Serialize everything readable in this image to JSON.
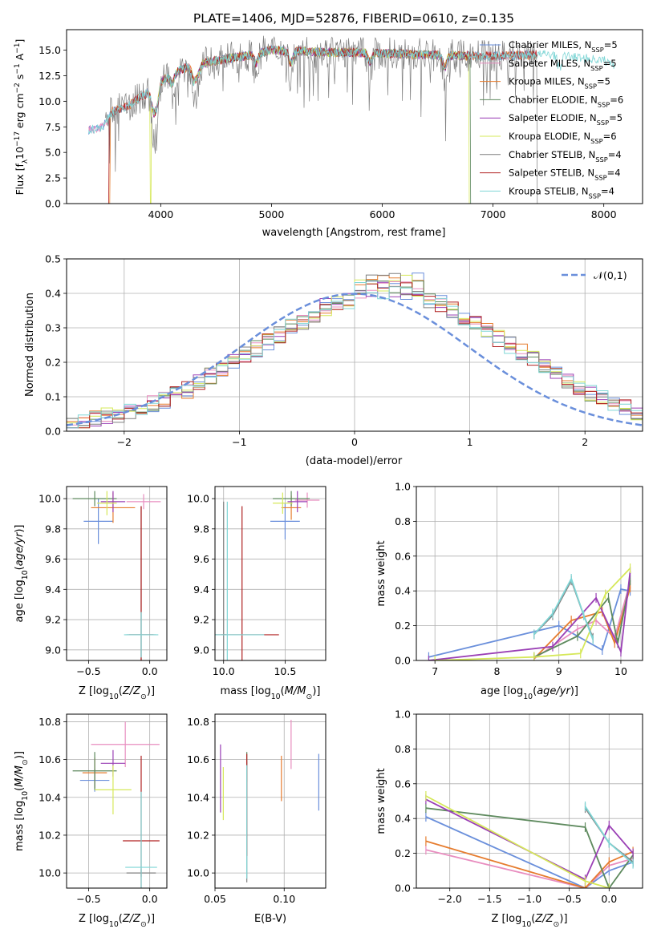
{
  "figure_title": "PLATE=1406, MJD=52876, FIBERID=0610, z=0.135",
  "chart_data": [
    {
      "id": "spectrum",
      "type": "line",
      "title": "PLATE=1406, MJD=52876, FIBERID=0610, z=0.135",
      "xlabel": "wavelength [Angstrom, rest frame]",
      "ylabel": "Flux [f_λ 10^-17 erg cm^-2 s^-1 A^-1]",
      "xlim": [
        3150,
        8350
      ],
      "ylim": [
        0,
        17
      ],
      "xticks": [
        4000,
        5000,
        6000,
        7000,
        8000
      ],
      "yticks": [
        0.0,
        2.5,
        5.0,
        7.5,
        10.0,
        12.5,
        15.0
      ],
      "grid": false,
      "legend_position": "right",
      "continuum_knots": [
        [
          3350,
          7.2
        ],
        [
          3480,
          7.5
        ],
        [
          3560,
          9.0
        ],
        [
          3700,
          9.5
        ],
        [
          3900,
          11.0
        ],
        [
          4000,
          12.0
        ],
        [
          4200,
          13.2
        ],
        [
          4500,
          14.0
        ],
        [
          4800,
          14.5
        ],
        [
          5000,
          15.0
        ],
        [
          5500,
          14.8
        ],
        [
          6000,
          14.7
        ],
        [
          6500,
          14.5
        ],
        [
          7000,
          14.4
        ],
        [
          7500,
          14.6
        ],
        [
          8000,
          14.0
        ],
        [
          8100,
          13.5
        ]
      ],
      "series": [
        {
          "name": "Chabrier MILES, N_SSP=5",
          "color": "#6a8fdb",
          "range": [
            3350,
            7400
          ],
          "dropouts": []
        },
        {
          "name": "Salpeter MILES, N_SSP=5",
          "color": "#e88dbf",
          "range": [
            3350,
            7400
          ],
          "dropouts": []
        },
        {
          "name": "Kroupa MILES, N_SSP=5",
          "color": "#e67c2e",
          "range": [
            3540,
            7400
          ],
          "dropouts": [
            3540
          ]
        },
        {
          "name": "Chabrier ELODIE, N_SSP=6",
          "color": "#5e8a5e",
          "range": [
            3900,
            6800
          ],
          "dropouts": [
            6800
          ]
        },
        {
          "name": "Salpeter ELODIE, N_SSP=5",
          "color": "#9a3fb5",
          "range": [
            3900,
            6800
          ],
          "dropouts": []
        },
        {
          "name": "Kroupa ELODIE, N_SSP=6",
          "color": "#d6e85a",
          "range": [
            3900,
            6790
          ],
          "dropouts": [
            3910,
            6790
          ]
        },
        {
          "name": "Chabrier STELIB, N_SSP=4",
          "color": "#7f7f7f",
          "range": [
            3500,
            7400
          ],
          "dropouts": [
            7400
          ]
        },
        {
          "name": "Salpeter STELIB, N_SSP=4",
          "color": "#b02020",
          "range": [
            3530,
            7400
          ],
          "dropouts": [
            3530,
            7410
          ]
        },
        {
          "name": "Kroupa STELIB, N_SSP=4",
          "color": "#7fd6d6",
          "range": [
            3350,
            8100
          ],
          "dropouts": []
        }
      ]
    },
    {
      "id": "residuals",
      "type": "step",
      "xlabel": "(data-model)/error",
      "ylabel": "Normed distribution",
      "xlim": [
        -2.5,
        2.5
      ],
      "ylim": [
        0,
        0.5
      ],
      "xticks": [
        -2,
        -1,
        0,
        1,
        2
      ],
      "yticks": [
        0.0,
        0.1,
        0.2,
        0.3,
        0.4,
        0.5
      ],
      "grid": true,
      "legend": [
        {
          "name": "𝒩(0,1)",
          "color": "#6a8fdb",
          "style": "dashed"
        }
      ],
      "bin_width": 0.1,
      "normal_curve": {
        "mu": 0,
        "sigma": 1
      },
      "base_hist": [
        0.02,
        0.03,
        0.04,
        0.045,
        0.05,
        0.06,
        0.07,
        0.08,
        0.09,
        0.11,
        0.12,
        0.14,
        0.16,
        0.18,
        0.2,
        0.22,
        0.24,
        0.26,
        0.28,
        0.3,
        0.32,
        0.34,
        0.36,
        0.37,
        0.38,
        0.39,
        0.4,
        0.4,
        0.4,
        0.39,
        0.39,
        0.38,
        0.37,
        0.35,
        0.33,
        0.31,
        0.29,
        0.27,
        0.25,
        0.23,
        0.21,
        0.19,
        0.17,
        0.15,
        0.13,
        0.11,
        0.1,
        0.08,
        0.07,
        0.05
      ],
      "series_colors": [
        "#6a8fdb",
        "#e88dbf",
        "#e67c2e",
        "#5e8a5e",
        "#9a3fb5",
        "#d6e85a",
        "#7f7f7f",
        "#b02020",
        "#7fd6d6"
      ]
    },
    {
      "id": "age-vs-z",
      "type": "errorbar",
      "xlabel": "Z [log10(Z/Z⊙)]",
      "ylabel": "age [log10(age/yr)]",
      "xlim": [
        -0.68,
        0.14
      ],
      "ylim": [
        8.93,
        10.08
      ],
      "xticks": [
        -0.5,
        0.0
      ],
      "yticks": [
        9.0,
        9.2,
        9.4,
        9.6,
        9.8,
        10.0
      ],
      "grid": true,
      "points": [
        {
          "x": -0.42,
          "y": 9.85,
          "xerr": 0.12,
          "yerr": 0.15,
          "color": "#6a8fdb"
        },
        {
          "x": -0.05,
          "y": 9.98,
          "xerr": 0.14,
          "yerr": 0.05,
          "color": "#e88dbf"
        },
        {
          "x": -0.3,
          "y": 9.94,
          "xerr": 0.18,
          "yerr": 0.1,
          "color": "#e67c2e"
        },
        {
          "x": -0.45,
          "y": 10.0,
          "xerr": 0.18,
          "yerr": 0.05,
          "color": "#5e8a5e"
        },
        {
          "x": -0.3,
          "y": 9.98,
          "xerr": 0.1,
          "yerr": 0.07,
          "color": "#9a3fb5"
        },
        {
          "x": -0.35,
          "y": 9.97,
          "xerr": 0.08,
          "yerr": 0.08,
          "color": "#d6e85a"
        },
        {
          "x": -0.07,
          "y": 9.1,
          "xerr": 0.12,
          "yerr": 0.85,
          "color": "#7f7f7f"
        },
        {
          "x": -0.07,
          "y": 9.1,
          "xerr": 0.1,
          "yerr": 0.85,
          "color": "#b02020"
        },
        {
          "x": -0.07,
          "y": 9.1,
          "xerr": 0.14,
          "yerr": 0.15,
          "color": "#7fd6d6"
        }
      ]
    },
    {
      "id": "age-vs-mass",
      "type": "errorbar",
      "xlabel": "mass [log10(M/M⊙)]",
      "ylabel": "",
      "xlim": [
        9.93,
        10.83
      ],
      "ylim": [
        8.93,
        10.08
      ],
      "xticks": [
        10.0,
        10.5
      ],
      "yticks": [
        9.0,
        9.2,
        9.4,
        9.6,
        9.8,
        10.0
      ],
      "grid": true,
      "points": [
        {
          "x": 10.5,
          "y": 9.85,
          "xerr": 0.12,
          "yerr": 0.12,
          "color": "#6a8fdb"
        },
        {
          "x": 10.68,
          "y": 9.99,
          "xerr": 0.1,
          "yerr": 0.05,
          "color": "#e88dbf"
        },
        {
          "x": 10.55,
          "y": 9.94,
          "xerr": 0.08,
          "yerr": 0.08,
          "color": "#e67c2e"
        },
        {
          "x": 10.55,
          "y": 10.0,
          "xerr": 0.15,
          "yerr": 0.05,
          "color": "#5e8a5e"
        },
        {
          "x": 10.6,
          "y": 9.98,
          "xerr": 0.08,
          "yerr": 0.07,
          "color": "#9a3fb5"
        },
        {
          "x": 10.48,
          "y": 9.97,
          "xerr": 0.08,
          "yerr": 0.07,
          "color": "#d6e85a"
        },
        {
          "x": 10.0,
          "y": 9.1,
          "xerr": 0.02,
          "yerr": 0.88,
          "color": "#7f7f7f"
        },
        {
          "x": 10.15,
          "y": 9.1,
          "xerr": 0.3,
          "yerr": 0.85,
          "color": "#b02020"
        },
        {
          "x": 10.03,
          "y": 9.1,
          "xerr": 0.3,
          "yerr": 0.88,
          "color": "#7fd6d6"
        }
      ]
    },
    {
      "id": "mass-weight-vs-age",
      "type": "line",
      "xlabel": "age [log10(age/yr)]",
      "ylabel": "mass weight",
      "xlim": [
        6.7,
        10.35
      ],
      "ylim": [
        0,
        1.0
      ],
      "xticks": [
        7,
        8,
        9,
        10
      ],
      "yticks": [
        0.0,
        0.2,
        0.4,
        0.6,
        0.8,
        1.0
      ],
      "grid": true,
      "series": [
        {
          "color": "#6a8fdb",
          "x": [
            6.9,
            9.0,
            9.7,
            10.0,
            10.15
          ],
          "y": [
            0.02,
            0.2,
            0.06,
            0.41,
            0.4
          ]
        },
        {
          "color": "#e88dbf",
          "x": [
            8.6,
            9.3,
            9.6,
            9.9,
            10.15
          ],
          "y": [
            0.01,
            0.18,
            0.23,
            0.13,
            0.45
          ]
        },
        {
          "color": "#e67c2e",
          "x": [
            8.6,
            9.2,
            9.7,
            9.9,
            10.15
          ],
          "y": [
            0.01,
            0.23,
            0.28,
            0.1,
            0.42
          ]
        },
        {
          "color": "#5e8a5e",
          "x": [
            8.6,
            9.3,
            9.8,
            9.95,
            10.15
          ],
          "y": [
            0.02,
            0.14,
            0.36,
            0.1,
            0.46
          ]
        },
        {
          "color": "#9a3fb5",
          "x": [
            6.9,
            8.9,
            9.6,
            10.0,
            10.15
          ],
          "y": [
            0.0,
            0.08,
            0.36,
            0.05,
            0.51
          ]
        },
        {
          "color": "#d6e85a",
          "x": [
            7.0,
            8.6,
            9.35,
            9.75,
            10.15
          ],
          "y": [
            0.0,
            0.02,
            0.04,
            0.38,
            0.53
          ]
        },
        {
          "color": "#7f7f7f",
          "x": [
            8.6,
            8.9,
            9.2,
            9.4,
            9.55
          ],
          "y": [
            0.15,
            0.26,
            0.46,
            0.26,
            0.13
          ]
        },
        {
          "color": "#7fd6d6",
          "x": [
            8.6,
            8.9,
            9.2,
            9.4,
            9.55
          ],
          "y": [
            0.15,
            0.27,
            0.47,
            0.26,
            0.12
          ]
        }
      ]
    },
    {
      "id": "mass-vs-z",
      "type": "errorbar",
      "xlabel": "Z [log10(Z/Z⊙)]",
      "ylabel": "mass [log10(M/M⊙)]",
      "xlim": [
        -0.68,
        0.14
      ],
      "ylim": [
        9.92,
        10.84
      ],
      "xticks": [
        -0.5,
        0.0
      ],
      "yticks": [
        10.0,
        10.2,
        10.4,
        10.6,
        10.8
      ],
      "grid": true,
      "points": [
        {
          "x": -0.45,
          "y": 10.49,
          "xerr": 0.12,
          "yerr": 0.06,
          "color": "#6a8fdb"
        },
        {
          "x": -0.2,
          "y": 10.68,
          "xerr": 0.28,
          "yerr": 0.12,
          "color": "#e88dbf"
        },
        {
          "x": -0.45,
          "y": 10.53,
          "xerr": 0.1,
          "yerr": 0.08,
          "color": "#e67c2e"
        },
        {
          "x": -0.45,
          "y": 10.54,
          "xerr": 0.18,
          "yerr": 0.1,
          "color": "#5e8a5e"
        },
        {
          "x": -0.3,
          "y": 10.58,
          "xerr": 0.1,
          "yerr": 0.07,
          "color": "#9a3fb5"
        },
        {
          "x": -0.3,
          "y": 10.44,
          "xerr": 0.15,
          "yerr": 0.13,
          "color": "#d6e85a"
        },
        {
          "x": -0.07,
          "y": 10.0,
          "xerr": 0.12,
          "yerr": 0.02,
          "color": "#7f7f7f"
        },
        {
          "x": -0.07,
          "y": 10.17,
          "xerr": 0.15,
          "yerr": 0.45,
          "color": "#b02020"
        },
        {
          "x": -0.07,
          "y": 10.03,
          "xerr": 0.13,
          "yerr": 0.4,
          "color": "#7fd6d6"
        }
      ]
    },
    {
      "id": "mass-vs-ebv",
      "type": "errorbar",
      "xlabel": "E(B-V)",
      "ylabel": "",
      "xlim": [
        0.05,
        0.13
      ],
      "ylim": [
        9.92,
        10.84
      ],
      "xticks": [
        0.05,
        0.1
      ],
      "yticks": [
        10.0,
        10.2,
        10.4,
        10.6,
        10.8
      ],
      "grid": true,
      "points": [
        {
          "x": 0.125,
          "y": 10.48,
          "xerr": 0,
          "yerr": 0.15,
          "color": "#6a8fdb"
        },
        {
          "x": 0.105,
          "y": 10.68,
          "xerr": 0,
          "yerr": 0.13,
          "color": "#e88dbf"
        },
        {
          "x": 0.098,
          "y": 10.5,
          "xerr": 0,
          "yerr": 0.12,
          "color": "#e67c2e"
        },
        {
          "x": 0.073,
          "y": 10.56,
          "xerr": 0,
          "yerr": 0.08,
          "color": "#5e8a5e"
        },
        {
          "x": 0.054,
          "y": 10.5,
          "xerr": 0,
          "yerr": 0.18,
          "color": "#9a3fb5"
        },
        {
          "x": 0.056,
          "y": 10.42,
          "xerr": 0,
          "yerr": 0.14,
          "color": "#d6e85a"
        },
        {
          "x": 0.073,
          "y": 10.27,
          "xerr": 0,
          "yerr": 0.32,
          "color": "#7f7f7f"
        },
        {
          "x": 0.073,
          "y": 10.36,
          "xerr": 0,
          "yerr": 0.27,
          "color": "#b02020"
        },
        {
          "x": 0.073,
          "y": 10.27,
          "xerr": 0,
          "yerr": 0.3,
          "color": "#7fd6d6"
        }
      ]
    },
    {
      "id": "mass-weight-vs-z",
      "type": "line",
      "xlabel": "Z [log10(Z/Z⊙)]",
      "ylabel": "mass weight",
      "xlim": [
        -2.42,
        0.42
      ],
      "ylim": [
        0,
        1.0
      ],
      "xticks": [
        -2.0,
        -1.5,
        -1.0,
        -0.5,
        0.0
      ],
      "yticks": [
        0.0,
        0.2,
        0.4,
        0.6,
        0.8,
        1.0
      ],
      "grid": true,
      "series": [
        {
          "color": "#6a8fdb",
          "x": [
            -2.3,
            -0.3,
            0.0,
            0.3
          ],
          "y": [
            0.41,
            0.0,
            0.1,
            0.15
          ]
        },
        {
          "color": "#e88dbf",
          "x": [
            -2.3,
            -0.3,
            0.0,
            0.3
          ],
          "y": [
            0.22,
            0.0,
            0.13,
            0.17
          ]
        },
        {
          "color": "#e67c2e",
          "x": [
            -2.3,
            -0.3,
            0.0,
            0.3
          ],
          "y": [
            0.27,
            0.0,
            0.15,
            0.21
          ]
        },
        {
          "color": "#5e8a5e",
          "x": [
            -2.3,
            -0.3,
            0.0,
            0.3
          ],
          "y": [
            0.46,
            0.35,
            0.0,
            0.19
          ]
        },
        {
          "color": "#9a3fb5",
          "x": [
            -2.3,
            -0.3,
            0.0,
            0.3
          ],
          "y": [
            0.51,
            0.05,
            0.36,
            0.2
          ]
        },
        {
          "color": "#d6e85a",
          "x": [
            -2.3,
            -0.3,
            0.0
          ],
          "y": [
            0.53,
            0.04,
            0.0
          ]
        },
        {
          "color": "#7f7f7f",
          "x": [
            -0.3,
            0.0,
            0.3
          ],
          "y": [
            0.46,
            0.26,
            0.15
          ]
        },
        {
          "color": "#7fd6d6",
          "x": [
            -0.3,
            0.0,
            0.3
          ],
          "y": [
            0.47,
            0.26,
            0.14
          ]
        }
      ]
    }
  ]
}
